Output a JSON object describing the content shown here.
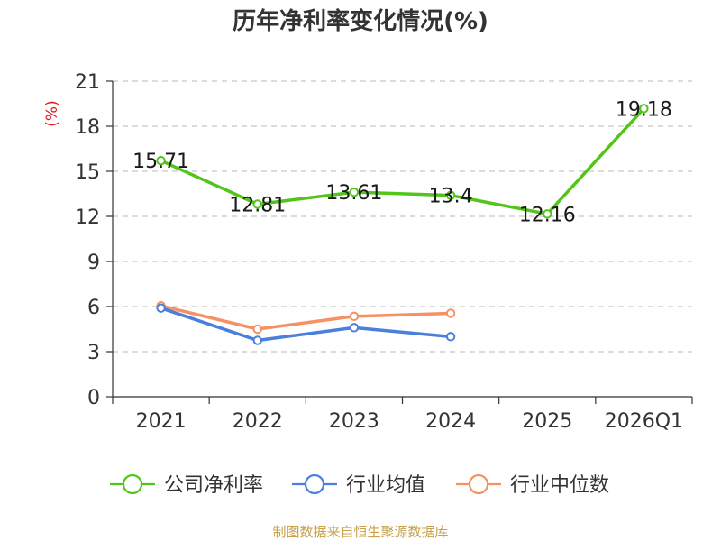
{
  "chart_data": {
    "type": "line",
    "title": "历年净利率变化情况(%)",
    "ylabel": "(%)",
    "xlabel": "",
    "categories": [
      "2021",
      "2022",
      "2023",
      "2024",
      "2025",
      "2026Q1"
    ],
    "ylim": [
      0,
      21
    ],
    "yticks": [
      0,
      3,
      6,
      9,
      12,
      15,
      18,
      21
    ],
    "grid": true,
    "legend_position": "bottom",
    "series": [
      {
        "name": "公司净利率",
        "color": "#52c41a",
        "values": [
          15.71,
          12.81,
          13.61,
          13.4,
          12.16,
          19.18
        ],
        "labels": [
          "15.71",
          "12.81",
          "13.61",
          "13.4",
          "12.16",
          "19.18"
        ]
      },
      {
        "name": "行业均值",
        "color": "#4a7fdb",
        "values": [
          5.9,
          3.75,
          4.6,
          4.0,
          null,
          null
        ],
        "labels": []
      },
      {
        "name": "行业中位数",
        "color": "#f59162",
        "values": [
          6.05,
          4.5,
          5.35,
          5.55,
          null,
          null
        ],
        "labels": []
      }
    ],
    "source": "制图数据来自恒生聚源数据库"
  }
}
